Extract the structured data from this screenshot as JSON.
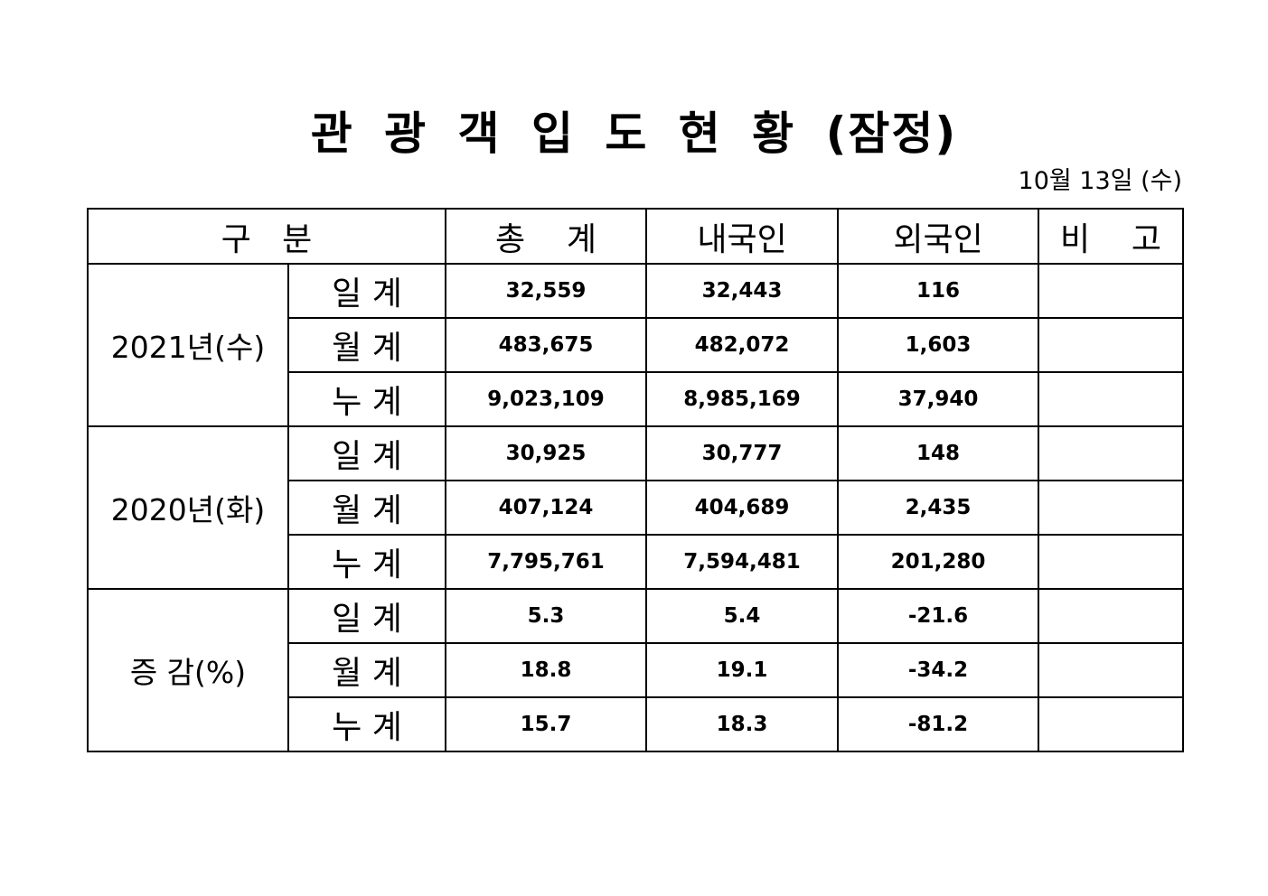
{
  "title": "관 광 객 입 도 현 황 (잠정)",
  "date": "10월 13일 (수)",
  "headers": {
    "category": "구   분",
    "total": "총    계",
    "domestic": "내국인",
    "foreign": "외국인",
    "note": "비    고"
  },
  "groups": [
    {
      "label": "2021년(수)",
      "rows": [
        {
          "sub": "일 계",
          "total": "32,559",
          "domestic": "32,443",
          "foreign": "116",
          "note": ""
        },
        {
          "sub": "월 계",
          "total": "483,675",
          "domestic": "482,072",
          "foreign": "1,603",
          "note": ""
        },
        {
          "sub": "누 계",
          "total": "9,023,109",
          "domestic": "8,985,169",
          "foreign": "37,940",
          "note": ""
        }
      ]
    },
    {
      "label": "2020년(화)",
      "rows": [
        {
          "sub": "일 계",
          "total": "30,925",
          "domestic": "30,777",
          "foreign": "148",
          "note": ""
        },
        {
          "sub": "월 계",
          "total": "407,124",
          "domestic": "404,689",
          "foreign": "2,435",
          "note": ""
        },
        {
          "sub": "누 계",
          "total": "7,795,761",
          "domestic": "7,594,481",
          "foreign": "201,280",
          "note": ""
        }
      ]
    },
    {
      "label": "증 감(%)",
      "rows": [
        {
          "sub": "일 계",
          "total": "5.3",
          "domestic": "5.4",
          "foreign": "-21.6",
          "note": ""
        },
        {
          "sub": "월 계",
          "total": "18.8",
          "domestic": "19.1",
          "foreign": "-34.2",
          "note": ""
        },
        {
          "sub": "누 계",
          "total": "15.7",
          "domestic": "18.3",
          "foreign": "-81.2",
          "note": ""
        }
      ]
    }
  ]
}
